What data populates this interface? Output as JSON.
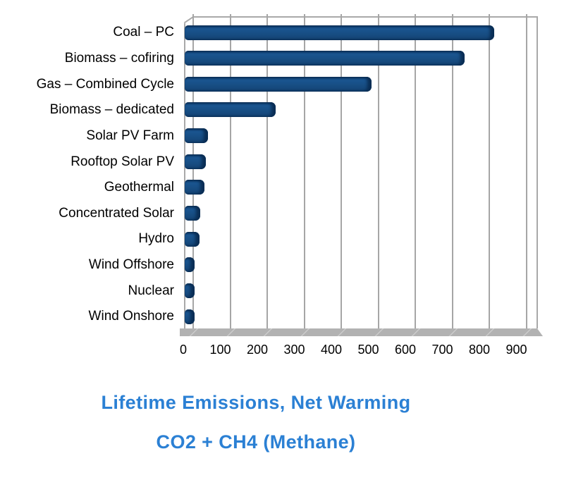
{
  "chart_data": {
    "type": "bar",
    "orientation": "horizontal",
    "title": "Lifetime Emissions, Net Warming",
    "subtitle": "CO2 + CH4 (Methane)",
    "xlabel": "",
    "ylabel": "",
    "categories": [
      "Coal – PC",
      "Biomass – cofiring",
      "Gas – Combined Cycle",
      "Biomass – dedicated",
      "Solar PV Farm",
      "Rooftop Solar PV",
      "Geothermal",
      "Concentrated Solar",
      "Hydro",
      "Wind Offshore",
      "Nuclear",
      "Wind Onshore"
    ],
    "values": [
      820,
      740,
      490,
      230,
      48,
      41,
      38,
      27,
      24,
      12,
      12,
      11
    ],
    "xlim": [
      0,
      900
    ],
    "xticks": [
      0,
      100,
      200,
      300,
      400,
      500,
      600,
      700,
      800,
      900
    ],
    "grid": true,
    "legend": false,
    "style_3d": true,
    "colors": {
      "bar": "#164a7e",
      "bar_edge": "#0a2e55",
      "gridline": "#a6a6a6",
      "floor": "#b2b2b2",
      "title": "#2b80d4",
      "text": "#000000",
      "background": "#ffffff"
    }
  }
}
